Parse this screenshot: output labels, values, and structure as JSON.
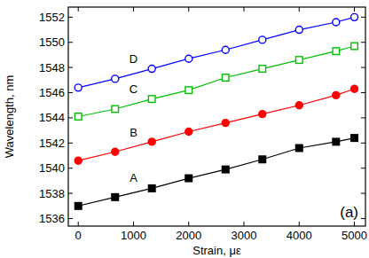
{
  "chart_data": {
    "type": "line",
    "x_label": "Strain, με",
    "y_label": "Wavelength, nm",
    "annotations": [
      "(a)"
    ],
    "x": [
      0,
      667,
      1333,
      2000,
      2667,
      3333,
      4000,
      4667,
      5000
    ],
    "series": [
      {
        "name": "A",
        "color": "#000000",
        "marker": "square",
        "line_style": "solid",
        "values": [
          1537.0,
          1537.7,
          1538.4,
          1539.2,
          1539.9,
          1540.7,
          1541.6,
          1542.1,
          1542.4
        ]
      },
      {
        "name": "B",
        "color": "#ff0000",
        "marker": "circle",
        "line_style": "solid",
        "values": [
          1540.6,
          1541.3,
          1542.1,
          1542.9,
          1543.6,
          1544.3,
          1545.0,
          1545.8,
          1546.3
        ]
      },
      {
        "name": "C",
        "color": "#00c000",
        "marker": "open-square",
        "line_style": "solid",
        "values": [
          1544.1,
          1544.7,
          1545.5,
          1546.2,
          1547.2,
          1547.9,
          1548.6,
          1549.3,
          1549.7
        ]
      },
      {
        "name": "D",
        "color": "#0000ff",
        "marker": "open-circle",
        "line_style": "solid",
        "values": [
          1546.4,
          1547.1,
          1547.9,
          1548.7,
          1549.4,
          1550.2,
          1551.0,
          1551.6,
          1552.0
        ]
      }
    ],
    "xlim": [
      -180,
      5200
    ],
    "xticks": [
      0,
      1000,
      2000,
      3000,
      4000,
      5000
    ],
    "ylim": [
      1535.4,
      1552.8
    ],
    "yticks": [
      1536,
      1538,
      1540,
      1542,
      1544,
      1546,
      1548,
      1550,
      1552
    ],
    "grid": false
  }
}
